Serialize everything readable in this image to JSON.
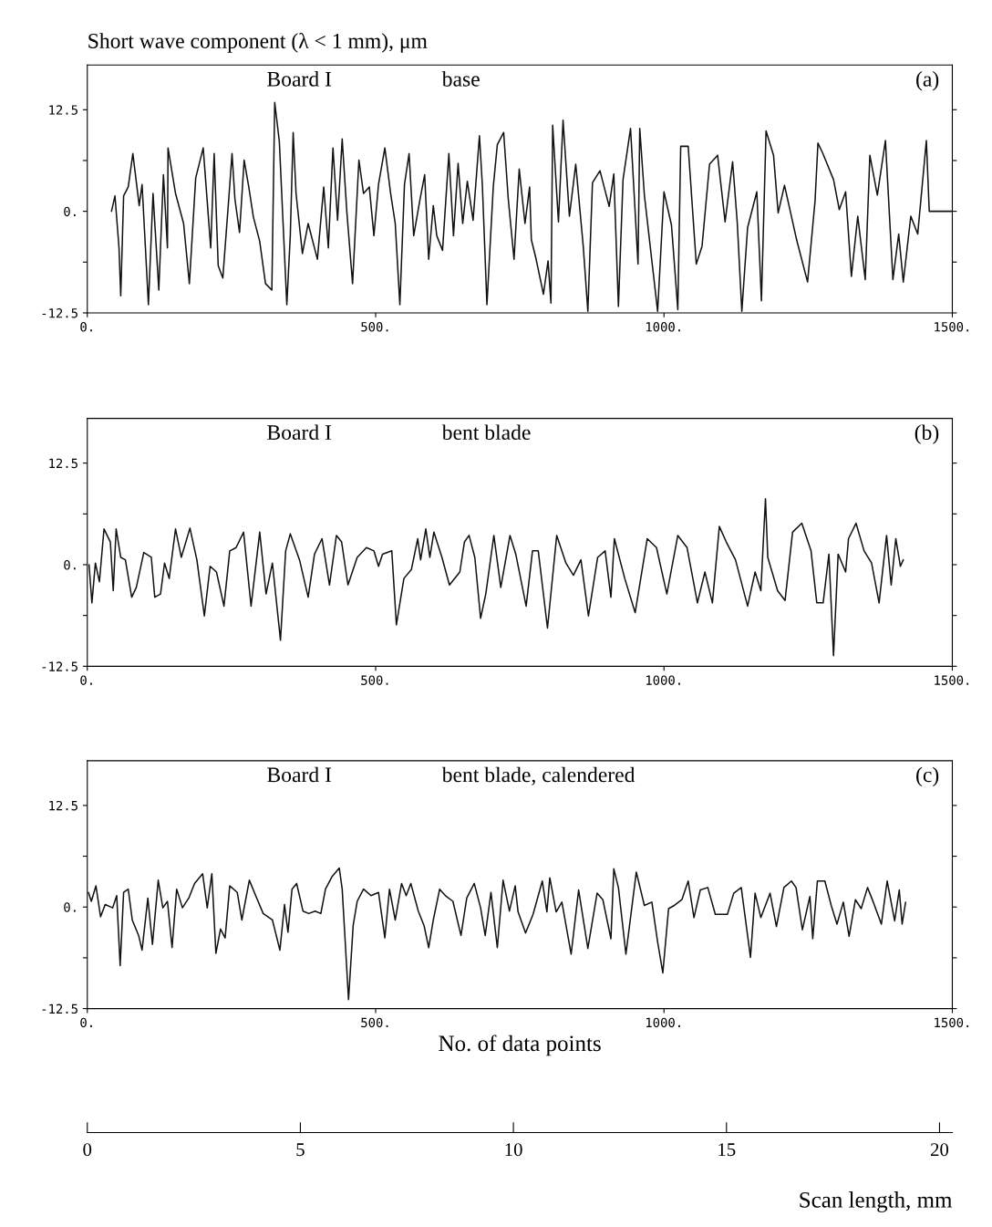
{
  "chart_data": [
    {
      "type": "line",
      "ylabel": "Short wave component (λ < 1 mm), μm",
      "annotations": [
        "Board I",
        "base",
        "(a)"
      ],
      "xlim": [
        0,
        1500
      ],
      "ylim": [
        -12.5,
        18
      ],
      "xticks": [
        {
          "value": 0,
          "label": "0."
        },
        {
          "value": 500,
          "label": "500."
        },
        {
          "value": 1000,
          "label": "1000."
        },
        {
          "value": 1500,
          "label": "1500."
        }
      ],
      "yticks": [
        {
          "value": -12.5,
          "label": "-12.5"
        },
        {
          "value": -6.25,
          "label": null
        },
        {
          "value": 0,
          "label": "0."
        },
        {
          "value": 6.25,
          "label": null
        },
        {
          "value": 12.5,
          "label": "12.5"
        }
      ],
      "grid": false,
      "legend": false,
      "marker": "none",
      "line_style": "solid",
      "series": [
        {
          "color": "#111111",
          "x": [
            42,
            48,
            55,
            58,
            63,
            71,
            79,
            90,
            95,
            106,
            114,
            124,
            132,
            139,
            140,
            153,
            167,
            177,
            188,
            201,
            214,
            220,
            227,
            235,
            246,
            251,
            256,
            264,
            272,
            280,
            288,
            299,
            309,
            320,
            325,
            333,
            346,
            352,
            357,
            362,
            373,
            383,
            399,
            410,
            418,
            426,
            434,
            442,
            450,
            460,
            471,
            479,
            489,
            497,
            505,
            516,
            526,
            534,
            542,
            550,
            558,
            566,
            577,
            585,
            592,
            600,
            606,
            616,
            627,
            635,
            643,
            651,
            659,
            669,
            680,
            685,
            693,
            704,
            711,
            722,
            730,
            740,
            749,
            759,
            767,
            770,
            778,
            791,
            799,
            804,
            807,
            817,
            825,
            836,
            847,
            860,
            868,
            876,
            889,
            905,
            913,
            921,
            929,
            942,
            955,
            958,
            966,
            979,
            989,
            1000,
            1013,
            1024,
            1029,
            1042,
            1056,
            1066,
            1079,
            1093,
            1106,
            1119,
            1127,
            1135,
            1145,
            1161,
            1169,
            1177,
            1190,
            1198,
            1209,
            1230,
            1249,
            1262,
            1267,
            1275,
            1294,
            1304,
            1315,
            1325,
            1336,
            1349,
            1357,
            1370,
            1384,
            1397,
            1407,
            1415,
            1428,
            1440,
            1455,
            1460,
            1500
          ],
          "values": [
            0,
            1.9,
            -4.5,
            -10.4,
            1.9,
            3,
            7.1,
            0.7,
            3.3,
            -11.5,
            2.2,
            -9.7,
            4.5,
            -4.5,
            7.8,
            2.2,
            -1.5,
            -8.9,
            4.1,
            7.8,
            -4.5,
            7.1,
            -6.7,
            -8.2,
            2.2,
            7.1,
            1.5,
            -2.6,
            6.3,
            3,
            -0.7,
            -3.7,
            -8.9,
            -9.7,
            13.4,
            8.6,
            -11.5,
            -3,
            9.7,
            2.2,
            -5.2,
            -1.5,
            -5.9,
            3,
            -4.5,
            7.8,
            -1.1,
            8.9,
            0,
            -8.9,
            6.3,
            2.2,
            3,
            -3,
            3.3,
            7.8,
            2.2,
            -1.5,
            -11.5,
            3.3,
            7.1,
            -3,
            1.5,
            4.5,
            -5.9,
            0.7,
            -3,
            -4.8,
            7.1,
            -3,
            5.9,
            -1.5,
            3.7,
            -1.1,
            9.3,
            3.3,
            -11.5,
            3,
            8.2,
            9.7,
            1.5,
            -5.9,
            5.2,
            -1.5,
            3,
            -3.5,
            -5.8,
            -10.2,
            -6.1,
            -11.3,
            10.6,
            -1.3,
            11.2,
            -0.6,
            5.8,
            -4.3,
            -12.3,
            3.5,
            5,
            0.6,
            4.6,
            -11.7,
            3.9,
            10.2,
            -6.5,
            10.2,
            2,
            -6.1,
            -12.3,
            2.4,
            -1.7,
            -12.1,
            8,
            8,
            -6.5,
            -4.3,
            5.8,
            6.9,
            -1.3,
            6.1,
            -1.3,
            -12.3,
            -2,
            2.4,
            -11,
            9.9,
            6.9,
            -0.2,
            3.2,
            -3.5,
            -8.7,
            1.3,
            8.4,
            7.2,
            3.9,
            0.2,
            2.4,
            -8,
            -0.6,
            -8.4,
            6.9,
            2,
            8.7,
            -8.4,
            -2.8,
            -8.7,
            -0.6,
            -2.8,
            8.7,
            0,
            0
          ]
        }
      ]
    },
    {
      "type": "line",
      "annotations": [
        "Board I",
        "bent blade",
        "(b)"
      ],
      "xlim": [
        0,
        1500
      ],
      "ylim": [
        -12.5,
        18
      ],
      "xticks": [
        {
          "value": 0,
          "label": "0."
        },
        {
          "value": 500,
          "label": "500."
        },
        {
          "value": 1000,
          "label": "1000."
        },
        {
          "value": 1500,
          "label": "1500."
        }
      ],
      "yticks": [
        {
          "value": -12.5,
          "label": "-12.5"
        },
        {
          "value": -6.25,
          "label": null
        },
        {
          "value": 0,
          "label": "0."
        },
        {
          "value": 6.25,
          "label": null
        },
        {
          "value": 12.5,
          "label": "12.5"
        }
      ],
      "grid": false,
      "legend": false,
      "marker": "none",
      "line_style": "solid",
      "series": [
        {
          "color": "#111111",
          "x": [
            3,
            8,
            14,
            21,
            29,
            40,
            45,
            50,
            58,
            66,
            77,
            85,
            98,
            111,
            117,
            127,
            134,
            142,
            153,
            163,
            178,
            190,
            203,
            213,
            224,
            237,
            247,
            258,
            271,
            284,
            299,
            310,
            321,
            335,
            344,
            352,
            368,
            383,
            394,
            407,
            420,
            432,
            441,
            452,
            468,
            484,
            497,
            505,
            512,
            528,
            536,
            549,
            562,
            573,
            578,
            587,
            594,
            601,
            615,
            628,
            646,
            654,
            662,
            672,
            682,
            691,
            705,
            717,
            733,
            743,
            761,
            772,
            782,
            798,
            814,
            830,
            843,
            856,
            869,
            885,
            898,
            908,
            914,
            932,
            950,
            971,
            987,
            1005,
            1024,
            1040,
            1058,
            1071,
            1084,
            1096,
            1108,
            1124,
            1145,
            1158,
            1168,
            1176,
            1180,
            1197,
            1210,
            1223,
            1239,
            1255,
            1265,
            1276,
            1286,
            1294,
            1302,
            1315,
            1320,
            1333,
            1347,
            1360,
            1373,
            1386,
            1394,
            1402,
            1410,
            1415
          ],
          "values": [
            0,
            -4.7,
            0.2,
            -2.1,
            4.4,
            2.8,
            -3.2,
            4.4,
            0.9,
            0.6,
            -4,
            -2.8,
            1.5,
            0.9,
            -4,
            -3.6,
            0.2,
            -1.7,
            4.4,
            0.9,
            4.5,
            0.6,
            -6.3,
            -0.2,
            -0.9,
            -5.1,
            1.7,
            2.1,
            4,
            -5.1,
            4,
            -3.6,
            0.2,
            -9.3,
            1.7,
            3.8,
            0.6,
            -4,
            1.3,
            3.2,
            -2.5,
            3.6,
            2.8,
            -2.5,
            0.9,
            2.1,
            1.7,
            -0.2,
            1.3,
            1.7,
            -7.4,
            -1.7,
            -0.6,
            3.2,
            0.6,
            4.4,
            0.9,
            4,
            0.9,
            -2.5,
            -0.9,
            2.8,
            3.6,
            0.9,
            -6.6,
            -3.6,
            3.6,
            -2.8,
            3.6,
            1.3,
            -5.1,
            1.7,
            1.7,
            -7.8,
            3.6,
            0.2,
            -1.3,
            0.6,
            -6.3,
            0.9,
            1.7,
            -4,
            3.2,
            -1.7,
            -5.9,
            3.2,
            2.1,
            -3.6,
            3.6,
            2.1,
            -4.7,
            -0.9,
            -4.7,
            4.7,
            2.8,
            0.6,
            -5.1,
            -0.9,
            -3.2,
            8.1,
            0.9,
            -3.2,
            -4.4,
            4,
            5.1,
            1.7,
            -4.7,
            -4.7,
            1.3,
            -11.2,
            1.3,
            -0.9,
            3.2,
            5.1,
            1.7,
            0.2,
            -4.7,
            3.6,
            -2.5,
            3.2,
            -0.2,
            0.6
          ]
        }
      ]
    },
    {
      "type": "line",
      "annotations": [
        "Board I",
        "bent blade, calendered",
        "(c)"
      ],
      "xlabel": "No. of data points",
      "x2label": "Scan length, mm",
      "x2lim": [
        0,
        20.3
      ],
      "x2ticks": [
        0,
        5,
        10,
        15,
        20
      ],
      "xlim": [
        0,
        1500
      ],
      "ylim": [
        -12.5,
        18
      ],
      "xticks": [
        {
          "value": 0,
          "label": "0."
        },
        {
          "value": 500,
          "label": "500."
        },
        {
          "value": 1000,
          "label": "1000."
        },
        {
          "value": 1500,
          "label": "1500."
        }
      ],
      "yticks": [
        {
          "value": -12.5,
          "label": "-12.5"
        },
        {
          "value": -6.25,
          "label": null
        },
        {
          "value": 0,
          "label": "0."
        },
        {
          "value": 6.25,
          "label": null
        },
        {
          "value": 12.5,
          "label": "12.5"
        }
      ],
      "grid": false,
      "legend": false,
      "marker": "none",
      "line_style": "solid",
      "series": [
        {
          "color": "#111111",
          "x": [
            2,
            7,
            15,
            23,
            31,
            44,
            51,
            57,
            63,
            71,
            78,
            89,
            95,
            105,
            113,
            123,
            131,
            139,
            147,
            155,
            165,
            176,
            186,
            200,
            208,
            216,
            223,
            231,
            239,
            247,
            260,
            268,
            281,
            292,
            305,
            321,
            334,
            342,
            348,
            355,
            363,
            374,
            384,
            395,
            405,
            413,
            424,
            437,
            442,
            453,
            461,
            468,
            479,
            492,
            505,
            516,
            524,
            534,
            545,
            553,
            561,
            574,
            584,
            592,
            600,
            611,
            621,
            634,
            648,
            658,
            671,
            682,
            690,
            700,
            711,
            721,
            732,
            742,
            747,
            760,
            773,
            789,
            797,
            802,
            813,
            823,
            839,
            852,
            868,
            884,
            894,
            908,
            913,
            921,
            934,
            952,
            966,
            979,
            989,
            998,
            1008,
            1018,
            1031,
            1042,
            1052,
            1063,
            1076,
            1089,
            1110,
            1121,
            1134,
            1150,
            1158,
            1168,
            1184,
            1195,
            1208,
            1221,
            1229,
            1240,
            1253,
            1258,
            1266,
            1279,
            1290,
            1300,
            1311,
            1321,
            1332,
            1342,
            1353,
            1363,
            1377,
            1387,
            1400,
            1408,
            1413,
            1419
          ],
          "values": [
            1.8,
            0.7,
            2.6,
            -1.2,
            0.3,
            -0.1,
            1.4,
            -7.2,
            1.8,
            2.2,
            -1.6,
            -3.5,
            -5.3,
            1.1,
            -4.6,
            3.3,
            -0.1,
            0.7,
            -5,
            2.2,
            -0.1,
            1.1,
            2.9,
            4.1,
            -0.1,
            4.1,
            -5.7,
            -2.7,
            -3.8,
            2.6,
            1.8,
            -1.6,
            3.3,
            1.4,
            -0.8,
            -1.6,
            -5.3,
            0.3,
            -3.1,
            2.2,
            2.9,
            -0.5,
            -0.8,
            -0.5,
            -0.8,
            2.2,
            3.7,
            4.8,
            2.2,
            -11.4,
            -2.3,
            0.7,
            2.2,
            1.4,
            1.8,
            -3.8,
            2.2,
            -1.6,
            2.9,
            1.4,
            2.9,
            -0.5,
            -2.3,
            -5,
            -1.6,
            2.2,
            1.4,
            0.7,
            -3.5,
            1.1,
            2.9,
            -0.1,
            -3.5,
            1.8,
            -5,
            3.3,
            -0.5,
            2.6,
            -0.6,
            -3.2,
            -0.9,
            3.2,
            -0.6,
            3.6,
            -0.6,
            0.6,
            -5.8,
            2.1,
            -5.1,
            1.7,
            0.9,
            -3.9,
            4.7,
            2.4,
            -5.8,
            4.3,
            0.2,
            0.6,
            -4.3,
            -8.1,
            -0.2,
            0.2,
            0.9,
            3.2,
            -1.3,
            2.1,
            2.4,
            -0.9,
            -0.9,
            1.7,
            2.4,
            -6.2,
            1.7,
            -1.3,
            1.7,
            -2.4,
            2.4,
            3.2,
            2.4,
            -2.8,
            1.3,
            -3.9,
            3.2,
            3.2,
            0.2,
            -2.1,
            0.6,
            -3.6,
            0.9,
            -0.2,
            2.4,
            0.6,
            -2.1,
            3.2,
            -1.7,
            2.1,
            -2.1,
            0.6
          ]
        }
      ]
    }
  ]
}
